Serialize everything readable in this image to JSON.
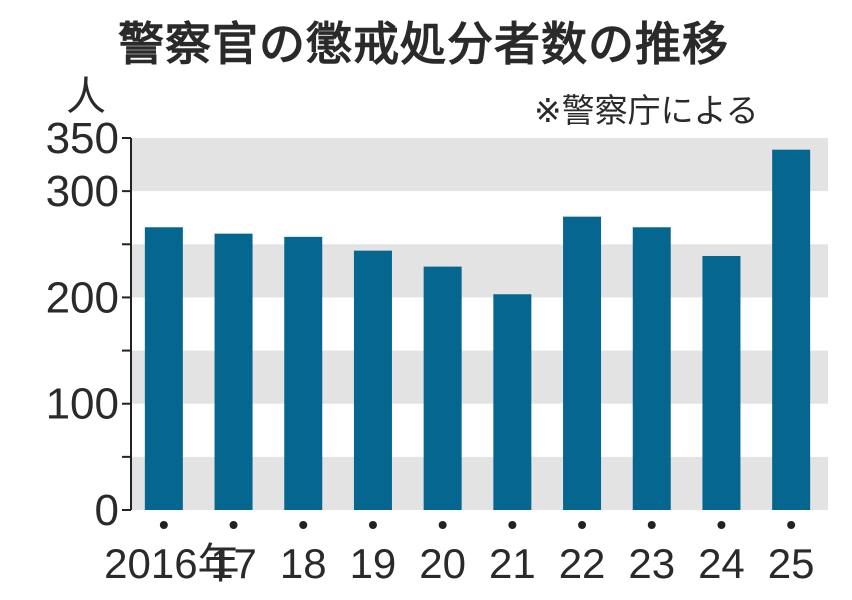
{
  "chart_data": {
    "type": "bar",
    "title": "警察官の懲戒処分者数の推移",
    "source": "※警察庁による",
    "ylabel": "人",
    "categories": [
      "2016年",
      "17",
      "18",
      "19",
      "20",
      "21",
      "22",
      "23",
      "24",
      "25"
    ],
    "values": [
      266,
      260,
      257,
      244,
      229,
      203,
      276,
      266,
      239,
      339
    ],
    "ylim": [
      0,
      350
    ],
    "yticks": [
      "0",
      "100",
      "200",
      "300",
      "350"
    ],
    "grid": "alternating horizontal bands",
    "bar_color": "#05668f",
    "band_color": "#e3e3e3"
  }
}
